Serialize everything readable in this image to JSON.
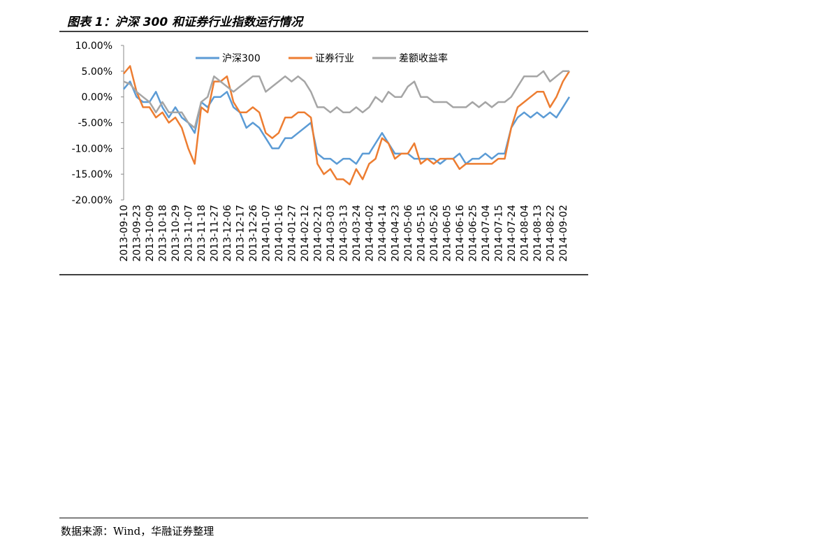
{
  "header": {
    "title": "图表 1：沪深 300 和证券行业指数运行情况"
  },
  "chart_data": {
    "type": "line",
    "categories": [
      "2013-09-10",
      null,
      "2013-09-23",
      null,
      "2013-10-09",
      null,
      "2013-10-18",
      null,
      "2013-10-29",
      null,
      "2013-11-07",
      null,
      "2013-11-18",
      null,
      "2013-11-27",
      null,
      "2013-12-06",
      null,
      "2013-12-17",
      null,
      "2013-12-26",
      null,
      "2014-01-07",
      null,
      "2014-01-16",
      null,
      "2014-01-27",
      null,
      "2014-02-12",
      null,
      "2014-02-21",
      null,
      "2014-03-03",
      null,
      "2014-03-13",
      null,
      "2014-03-24",
      null,
      "2014-04-02",
      null,
      "2014-04-14",
      null,
      "2014-04-23",
      null,
      "2014-05-06",
      null,
      "2014-05-15",
      null,
      "2014-05-26",
      null,
      "2014-06-05",
      null,
      "2014-06-16",
      null,
      "2014-06-25",
      null,
      "2014-07-04",
      null,
      "2014-07-15",
      null,
      "2014-07-24",
      null,
      "2014-08-04",
      null,
      "2014-08-13",
      null,
      "2014-08-22",
      null,
      "2014-09-02",
      null
    ],
    "series": [
      {
        "name": "沪深300",
        "color": "#5b9bd5",
        "values": [
          1.5,
          3,
          0,
          -1,
          -1,
          1,
          -2,
          -4,
          -2,
          -4,
          -5,
          -7,
          -1,
          -2,
          0,
          0,
          1,
          -2,
          -3,
          -6,
          -5,
          -6,
          -8,
          -10,
          -10,
          -8,
          -8,
          -7,
          -6,
          -5,
          -11,
          -12,
          -12,
          -13,
          -12,
          -12,
          -13,
          -11,
          -11,
          -9,
          -7,
          -9,
          -11,
          -11,
          -11,
          -12,
          -12,
          -12,
          -12,
          -13,
          -12,
          -12,
          -11,
          -13,
          -12,
          -12,
          -11,
          -12,
          -11,
          -11,
          -6,
          -4,
          -3,
          -4,
          -3,
          -4,
          -3,
          -4,
          -2,
          0
        ]
      },
      {
        "name": "证券行业",
        "color": "#ed7d31",
        "values": [
          4.5,
          6,
          1,
          -2,
          -2,
          -4,
          -3,
          -5,
          -4,
          -6,
          -10,
          -13,
          -2,
          -3,
          3,
          3,
          4,
          -1,
          -3,
          -3,
          -2,
          -3,
          -7,
          -8,
          -7,
          -4,
          -4,
          -3,
          -3,
          -4,
          -13,
          -15,
          -14,
          -16,
          -16,
          -17,
          -14,
          -16,
          -13,
          -12,
          -8,
          -9,
          -12,
          -11,
          -11,
          -9,
          -13,
          -12,
          -13,
          -12,
          -12,
          -12,
          -14,
          -13,
          -13,
          -13,
          -13,
          -13,
          -12,
          -12,
          -6,
          -2,
          -1,
          0,
          1,
          1,
          -2,
          0,
          3,
          5
        ]
      },
      {
        "name": "差额收益率",
        "color": "#a5a5a5",
        "values": [
          3,
          2.5,
          1,
          0,
          -1,
          -3,
          -1,
          -3,
          -3,
          -3,
          -5,
          -6,
          -1,
          0,
          4,
          3,
          2,
          1,
          2,
          3,
          4,
          4,
          1,
          2,
          3,
          4,
          3,
          4,
          3,
          1,
          -2,
          -2,
          -3,
          -2,
          -3,
          -3,
          -2,
          -3,
          -2,
          0,
          -1,
          1,
          0,
          0,
          2,
          3,
          0,
          0,
          -1,
          -1,
          -1,
          -2,
          -2,
          -2,
          -1,
          -2,
          -1,
          -2,
          -1,
          -1,
          0,
          2,
          4,
          4,
          4,
          5,
          3,
          4,
          5,
          5
        ]
      }
    ],
    "ylim": [
      -20,
      10
    ],
    "yticks": [
      {
        "value": -20,
        "label": "-20.00%"
      },
      {
        "value": -15,
        "label": "-15.00%"
      },
      {
        "value": -10,
        "label": "-10.00%"
      },
      {
        "value": -5,
        "label": "-5.00%"
      },
      {
        "value": 0,
        "label": "0.00%"
      },
      {
        "value": 5,
        "label": "5.00%"
      },
      {
        "value": 10,
        "label": "10.00%"
      }
    ],
    "legend": "top"
  },
  "footer": {
    "source": "数据来源：Wind，华融证券整理"
  }
}
